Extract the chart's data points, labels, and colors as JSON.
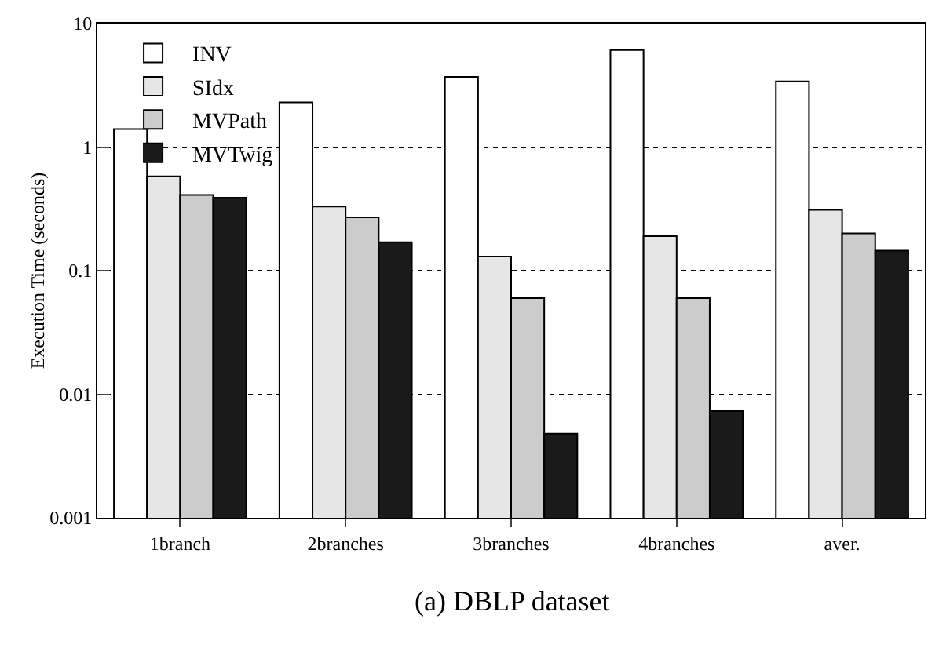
{
  "chart_data": {
    "type": "bar",
    "ylabel": "Execution Time (seconds)",
    "log": true,
    "categories": [
      "1branch",
      "2branches",
      "3branches",
      "4branches",
      "aver."
    ],
    "series": [
      {
        "name": "INV",
        "color": "#ffffff",
        "values": [
          1.4,
          2.3,
          3.7,
          6.1,
          3.4
        ]
      },
      {
        "name": "SIdx",
        "color": "#e6e6e6",
        "values": [
          0.58,
          0.33,
          0.13,
          0.19,
          0.31
        ]
      },
      {
        "name": "MVPath",
        "color": "#cccccc",
        "values": [
          0.41,
          0.27,
          0.06,
          0.06,
          0.2
        ]
      },
      {
        "name": "MVTwig",
        "color": "#1a1a1a",
        "values": [
          0.39,
          0.17,
          0.0048,
          0.0073,
          0.145
        ]
      }
    ],
    "ylim": [
      0.001,
      10
    ],
    "yticks": [
      0.001,
      0.01,
      0.1,
      1,
      10
    ],
    "grid": "y",
    "legend": "top left",
    "annotations": [
      "(a) DBLP dataset"
    ]
  }
}
